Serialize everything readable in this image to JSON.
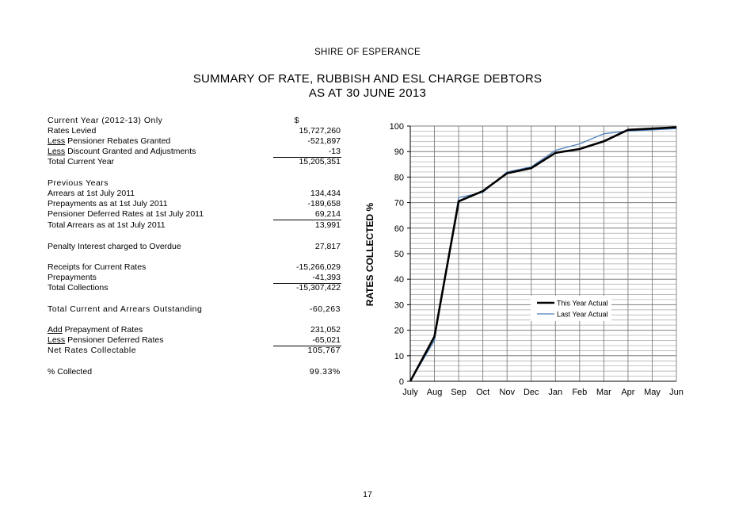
{
  "header": {
    "organisation": "SHIRE OF ESPERANCE",
    "title_line1": "SUMMARY OF RATE, RUBBISH AND ESL CHARGE DEBTORS",
    "title_line2": "AS AT 30 JUNE 2013"
  },
  "summary": {
    "current_year_heading": "Current Year (2012-13) Only",
    "currency_symbol": "$",
    "rates_levied": {
      "label": "Rates Levied",
      "value": "15,727,260"
    },
    "pensioner_rebates": {
      "prefix": "Less",
      "label": " Pensioner Rebates Granted",
      "value": "-521,897"
    },
    "discount_granted": {
      "prefix": "Less",
      "label": " Discount Granted and Adjustments",
      "value": "-13"
    },
    "total_current_year": {
      "label": "Total Current Year",
      "value": "15,205,351"
    },
    "previous_years_heading": "Previous Years",
    "arrears": {
      "label": "Arrears at 1st July 2011",
      "value": "134,434"
    },
    "prepayments_prev": {
      "label": "Prepayments as at 1st July 2011",
      "value": "-189,658"
    },
    "pensioner_deferred_prev": {
      "label": "Pensioner Deferred Rates at 1st July 2011",
      "value": "69,214"
    },
    "total_arrears": {
      "label": "Total Arrears as at 1st July 2011",
      "value": "13,991"
    },
    "penalty_interest": {
      "label": "Penalty Interest charged to Overdue",
      "value": "27,817"
    },
    "receipts_current": {
      "label": "Receipts for Current Rates",
      "value": "-15,266,029"
    },
    "prepayments": {
      "label": "Prepayments",
      "value": "-41,393"
    },
    "total_collections": {
      "label": "Total Collections",
      "value": "-15,307,422"
    },
    "total_outstanding": {
      "label": "Total Current and Arrears Outstanding",
      "value": "-60,263"
    },
    "add_prepayment": {
      "prefix": "Add",
      "label": " Prepayment of Rates",
      "value": "231,052"
    },
    "less_pensioner_deferred": {
      "prefix": "Less",
      "label": " Pensioner Deferred Rates",
      "value": "-65,021"
    },
    "net_rates_collectable": {
      "label": "Net Rates Collectable",
      "value": "105,767"
    },
    "percent_collected": {
      "label": "% Collected",
      "value": "99.33%"
    }
  },
  "chart_data": {
    "type": "line",
    "categories": [
      "July",
      "Aug",
      "Sep",
      "Oct",
      "Nov",
      "Dec",
      "Jan",
      "Feb",
      "Mar",
      "Apr",
      "May",
      "Jun"
    ],
    "series": [
      {
        "name": "This Year Actual",
        "color": "#000000",
        "values": [
          0,
          17.5,
          70.5,
          74.5,
          81.5,
          83.5,
          89.5,
          91,
          94,
          98.5,
          99,
          99.5
        ]
      },
      {
        "name": "Last Year Actual",
        "color": "#4a7ebb",
        "values": [
          0,
          16,
          72,
          74,
          82,
          84,
          90.5,
          93,
          97,
          98,
          98.5,
          99
        ]
      }
    ],
    "ylabel": "RATES COLLECTED %",
    "xlabel": "",
    "ylim": [
      0,
      100
    ],
    "yticks": [
      0,
      10,
      20,
      30,
      40,
      50,
      60,
      70,
      80,
      90,
      100
    ],
    "grid": true,
    "legend_position": "inside-right"
  },
  "footer": {
    "page_number": "17"
  }
}
